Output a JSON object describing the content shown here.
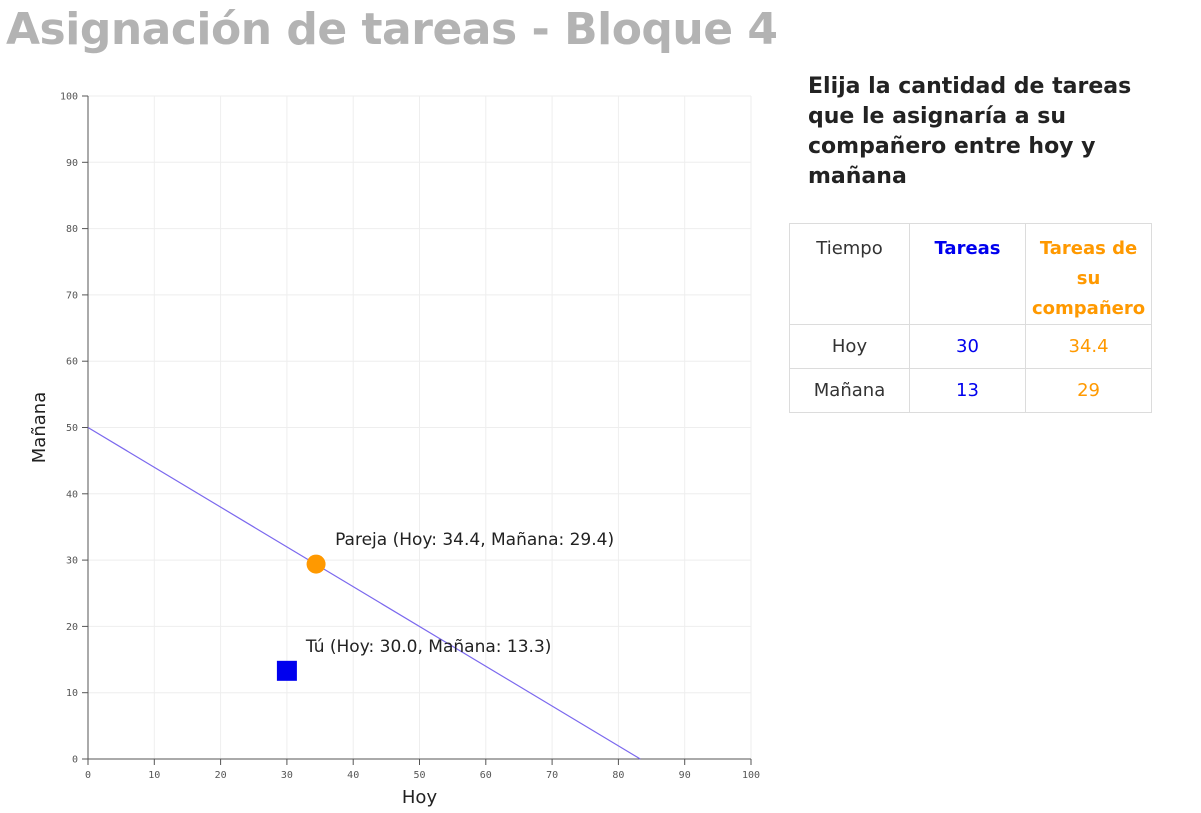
{
  "title": "Asignación de tareas - Bloque 4",
  "instructions": "Elija la cantidad de tareas que le asignaría a su compañero entre hoy y mañana",
  "colors": {
    "title": "#b3b3b3",
    "self": "#0000ee",
    "partner": "#ff9900",
    "line": "#7b68ee",
    "grid": "#eeeeee",
    "axis": "#555555"
  },
  "table": {
    "headers": [
      "Tiempo",
      "Tareas",
      "Tareas de su compañero"
    ],
    "rows": [
      {
        "tiempo": "Hoy",
        "tareas": "30",
        "companero": "34.4"
      },
      {
        "tiempo": "Mañana",
        "tareas": "13",
        "companero": "29"
      }
    ]
  },
  "chart_data": {
    "type": "scatter",
    "xlabel": "Hoy",
    "ylabel": "Mañana",
    "xlim": [
      0,
      100
    ],
    "ylim": [
      0,
      100
    ],
    "xticks": [
      0,
      10,
      20,
      30,
      40,
      50,
      60,
      70,
      80,
      90,
      100
    ],
    "yticks": [
      0,
      10,
      20,
      30,
      40,
      50,
      60,
      70,
      80,
      90,
      100
    ],
    "grid": true,
    "line": {
      "x": [
        0,
        83.3
      ],
      "y": [
        50,
        0
      ]
    },
    "points": [
      {
        "label": "Pareja (Hoy: 34.4, Mañana: 29.4)",
        "x": 34.4,
        "y": 29.4,
        "marker": "circle",
        "color": "#ff9900"
      },
      {
        "label": "Tú (Hoy: 30.0, Mañana: 13.3)",
        "x": 30.0,
        "y": 13.3,
        "marker": "square",
        "color": "#0000ee"
      }
    ]
  }
}
